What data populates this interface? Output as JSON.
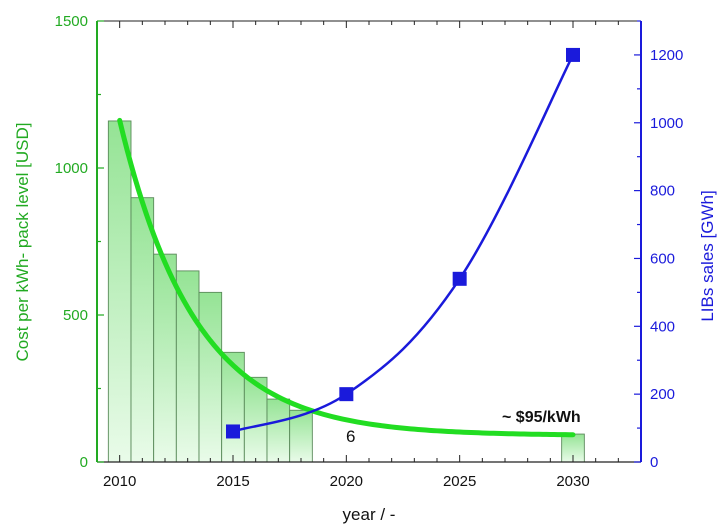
{
  "chart_data": {
    "type": "bar",
    "x_axis": {
      "label": "year / -",
      "range": [
        2009,
        2033
      ],
      "ticks": [
        2010,
        2015,
        2020,
        2025,
        2030
      ]
    },
    "y_left": {
      "label": "Cost per kWh- pack level [USD]",
      "range": [
        0,
        1500
      ],
      "ticks": [
        0,
        500,
        1000,
        1500
      ],
      "color": "#22aa22"
    },
    "y_right": {
      "label": "LIBs sales [GWh]",
      "range": [
        0,
        1300
      ],
      "ticks": [
        0,
        200,
        400,
        600,
        800,
        1000,
        1200
      ],
      "color": "#1a1adb"
    },
    "cost_bars": {
      "axis": "left",
      "x": [
        2010,
        2011,
        2012,
        2013,
        2014,
        2015,
        2016,
        2017,
        2018,
        2030
      ],
      "values": [
        1160,
        899,
        707,
        650,
        577,
        373,
        288,
        214,
        176,
        95
      ],
      "bar_color": "#8fe28f"
    },
    "cost_fit": {
      "axis": "left",
      "color": "#22dd22",
      "x_start": 2010,
      "x_end": 2030,
      "a": 1072,
      "b": 0.3,
      "c": 90
    },
    "sales_series": {
      "axis": "right",
      "x": [
        2015,
        2020,
        2025,
        2030
      ],
      "values": [
        90,
        200,
        540,
        1200
      ],
      "color": "#1a1adb"
    },
    "annotations": {
      "price_label": "~ $95/kWh",
      "small_label": "6"
    }
  }
}
